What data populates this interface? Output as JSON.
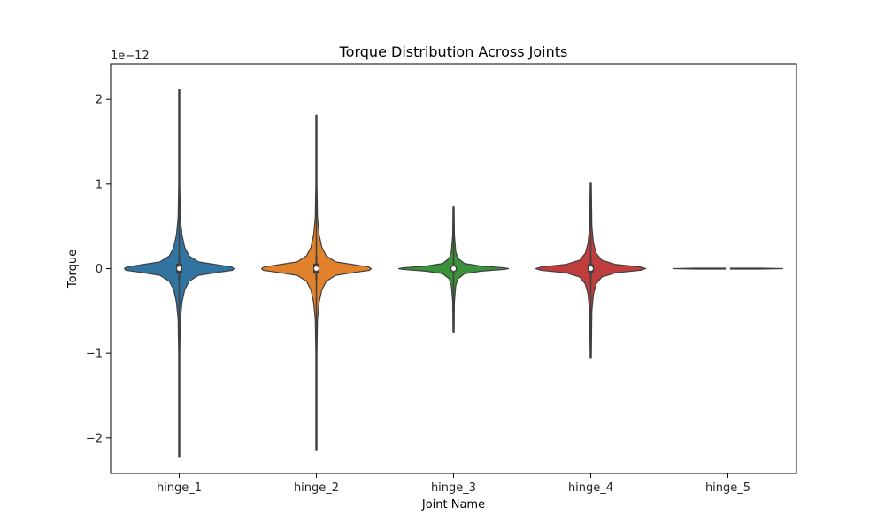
{
  "chart_data": {
    "type": "violin",
    "title": "Torque Distribution Across Joints",
    "xlabel": "Joint Name",
    "ylabel": "Torque",
    "y_scale_label": "1e−12",
    "y_scale_factor": 1e-12,
    "ylim": [
      -2.42,
      2.42
    ],
    "yticks": [
      -2,
      -1,
      0,
      1,
      2
    ],
    "ytick_labels": [
      "−2",
      "−1",
      "0",
      "1",
      "2"
    ],
    "categories": [
      "hinge_1",
      "hinge_2",
      "hinge_3",
      "hinge_4",
      "hinge_5"
    ],
    "series": [
      {
        "category": "hinge_1",
        "color": "#3274a1",
        "min": -2.22,
        "max": 2.12,
        "q1": -0.06,
        "median": 0.0,
        "q3": 0.06,
        "whisker_low": -0.15,
        "whisker_high": 0.15,
        "density": [
          [
            -2.22,
            0.01
          ],
          [
            -1.0,
            0.01
          ],
          [
            -0.6,
            0.02
          ],
          [
            -0.4,
            0.05
          ],
          [
            -0.25,
            0.1
          ],
          [
            -0.15,
            0.18
          ],
          [
            -0.08,
            0.35
          ],
          [
            -0.04,
            0.75
          ],
          [
            -0.02,
            0.97
          ],
          [
            0.0,
            1.0
          ],
          [
            0.02,
            0.95
          ],
          [
            0.04,
            0.75
          ],
          [
            0.08,
            0.35
          ],
          [
            0.15,
            0.18
          ],
          [
            0.25,
            0.1
          ],
          [
            0.4,
            0.05
          ],
          [
            0.6,
            0.02
          ],
          [
            1.0,
            0.01
          ],
          [
            2.12,
            0.01
          ]
        ]
      },
      {
        "category": "hinge_2",
        "color": "#e1812c",
        "min": -2.15,
        "max": 1.81,
        "q1": -0.06,
        "median": 0.0,
        "q3": 0.06,
        "whisker_low": -0.15,
        "whisker_high": 0.15,
        "density": [
          [
            -2.15,
            0.01
          ],
          [
            -1.0,
            0.01
          ],
          [
            -0.6,
            0.02
          ],
          [
            -0.4,
            0.05
          ],
          [
            -0.25,
            0.1
          ],
          [
            -0.15,
            0.18
          ],
          [
            -0.08,
            0.35
          ],
          [
            -0.04,
            0.75
          ],
          [
            -0.02,
            0.97
          ],
          [
            0.0,
            1.0
          ],
          [
            0.02,
            0.95
          ],
          [
            0.04,
            0.75
          ],
          [
            0.08,
            0.35
          ],
          [
            0.15,
            0.18
          ],
          [
            0.25,
            0.1
          ],
          [
            0.4,
            0.05
          ],
          [
            0.6,
            0.02
          ],
          [
            1.0,
            0.01
          ],
          [
            1.81,
            0.01
          ]
        ]
      },
      {
        "category": "hinge_3",
        "color": "#3a923a",
        "min": -0.75,
        "max": 0.73,
        "q1": -0.03,
        "median": 0.0,
        "q3": 0.03,
        "whisker_low": -0.07,
        "whisker_high": 0.07,
        "density": [
          [
            -0.75,
            0.01
          ],
          [
            -0.4,
            0.015
          ],
          [
            -0.2,
            0.04
          ],
          [
            -0.12,
            0.08
          ],
          [
            -0.06,
            0.2
          ],
          [
            -0.03,
            0.5
          ],
          [
            -0.01,
            0.92
          ],
          [
            0.0,
            1.0
          ],
          [
            0.01,
            0.92
          ],
          [
            0.03,
            0.5
          ],
          [
            0.06,
            0.2
          ],
          [
            0.12,
            0.08
          ],
          [
            0.2,
            0.04
          ],
          [
            0.4,
            0.015
          ],
          [
            0.73,
            0.01
          ]
        ]
      },
      {
        "category": "hinge_4",
        "color": "#c03d3e",
        "min": -1.06,
        "max": 1.01,
        "q1": -0.05,
        "median": 0.0,
        "q3": 0.05,
        "whisker_low": -0.12,
        "whisker_high": 0.12,
        "density": [
          [
            -1.06,
            0.01
          ],
          [
            -0.5,
            0.02
          ],
          [
            -0.3,
            0.05
          ],
          [
            -0.18,
            0.1
          ],
          [
            -0.1,
            0.2
          ],
          [
            -0.05,
            0.45
          ],
          [
            -0.02,
            0.9
          ],
          [
            0.0,
            1.0
          ],
          [
            0.02,
            0.9
          ],
          [
            0.05,
            0.45
          ],
          [
            0.1,
            0.2
          ],
          [
            0.18,
            0.1
          ],
          [
            0.3,
            0.05
          ],
          [
            0.5,
            0.02
          ],
          [
            1.01,
            0.01
          ]
        ]
      },
      {
        "category": "hinge_5",
        "color": "#9372b2",
        "min": -0.005,
        "max": 0.005,
        "q1": -0.001,
        "median": 0.0,
        "q3": 0.001,
        "whisker_low": -0.003,
        "whisker_high": 0.003,
        "density": [
          [
            -0.005,
            0.6
          ],
          [
            0.0,
            1.0
          ],
          [
            0.005,
            0.6
          ]
        ]
      }
    ],
    "grid": false,
    "legend": "none"
  }
}
